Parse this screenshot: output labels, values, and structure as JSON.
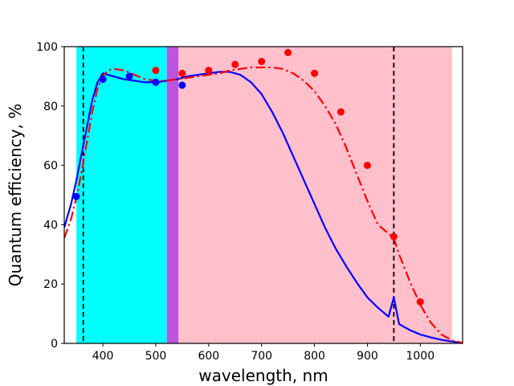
{
  "chart_data": {
    "type": "line",
    "title": "",
    "xlabel": "wavelength, nm",
    "ylabel": "Quantum efficiency, %",
    "xlim": [
      327,
      1080
    ],
    "ylim": [
      0,
      100
    ],
    "xticks": [
      400,
      500,
      600,
      700,
      800,
      900,
      1000
    ],
    "yticks": [
      0,
      20,
      40,
      60,
      80,
      100
    ],
    "grid": false,
    "legend": "none",
    "bands": [
      {
        "name": "cyan-band",
        "x0": 350,
        "x1": 521,
        "color": "#00ffff"
      },
      {
        "name": "purple-band",
        "x0": 521,
        "x1": 543,
        "color": "#bb55dd"
      },
      {
        "name": "pink-band",
        "x0": 543,
        "x1": 1060,
        "color": "#ffc0cb"
      }
    ],
    "vlines": [
      {
        "name": "vline-left",
        "x": 363,
        "color": "#000000",
        "style": "dashed"
      },
      {
        "name": "vline-right",
        "x": 950,
        "color": "#000000",
        "style": "dashed"
      }
    ],
    "series": [
      {
        "name": "blue-curve",
        "kind": "line",
        "color": "#0000ff",
        "style": "solid",
        "x": [
          327,
          340,
          350,
          360,
          370,
          380,
          390,
          400,
          410,
          420,
          440,
          460,
          480,
          500,
          520,
          540,
          560,
          580,
          600,
          620,
          640,
          660,
          680,
          700,
          720,
          740,
          760,
          780,
          800,
          820,
          840,
          860,
          880,
          900,
          920,
          940,
          950,
          960,
          980,
          1000,
          1020,
          1040,
          1060,
          1080
        ],
        "y": [
          39,
          47,
          55,
          64,
          73,
          82,
          88,
          91,
          90.5,
          90,
          89,
          88.5,
          88,
          88,
          88.5,
          89,
          90,
          90.5,
          91,
          91.5,
          91.5,
          90.5,
          88,
          84,
          78,
          71,
          63,
          55,
          47,
          39,
          32,
          26,
          20.5,
          15.5,
          12,
          9,
          15.5,
          6.5,
          4.5,
          3,
          2,
          1.2,
          0.6,
          0.2
        ]
      },
      {
        "name": "red-dashdot-curve",
        "kind": "line",
        "color": "#ff0000",
        "style": "dashdot",
        "x": [
          327,
          340,
          350,
          360,
          370,
          380,
          390,
          400,
          410,
          420,
          440,
          460,
          480,
          500,
          520,
          540,
          560,
          580,
          600,
          620,
          640,
          660,
          680,
          700,
          720,
          740,
          760,
          780,
          800,
          820,
          840,
          860,
          880,
          900,
          920,
          940,
          950,
          960,
          980,
          1000,
          1020,
          1040,
          1060,
          1080
        ],
        "y": [
          35.5,
          42,
          49,
          58,
          68,
          78,
          86,
          90,
          92,
          92.5,
          92,
          90.5,
          89,
          88.5,
          88.5,
          89,
          89.5,
          90,
          90.5,
          91,
          92,
          92.5,
          93,
          93,
          93,
          92.5,
          91,
          88.5,
          85,
          80,
          74,
          66,
          57,
          48,
          40,
          37,
          35.5,
          30,
          21,
          13,
          7,
          3,
          1,
          0.2
        ]
      },
      {
        "name": "blue-points",
        "kind": "scatter",
        "color": "#0000ff",
        "x": [
          350,
          400,
          450,
          500,
          550
        ],
        "y": [
          49.5,
          89,
          90,
          88,
          87
        ]
      },
      {
        "name": "red-points",
        "kind": "scatter",
        "color": "#ff0000",
        "x": [
          500,
          550,
          600,
          650,
          700,
          750,
          800,
          850,
          900,
          950,
          1000
        ],
        "y": [
          92,
          91,
          92,
          94,
          95,
          98,
          91,
          78,
          60,
          36,
          14
        ]
      }
    ]
  }
}
